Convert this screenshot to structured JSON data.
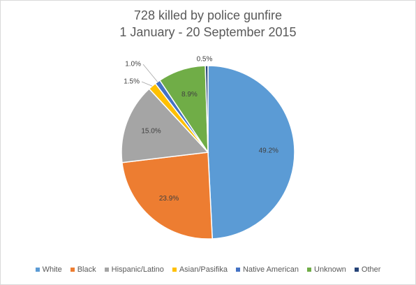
{
  "chart_data": {
    "type": "pie",
    "title": [
      "728 killed by police gunfire",
      "1 January - 20 September 2015"
    ],
    "categories": [
      "White",
      "Black",
      "Hispanic/Latino",
      "Asian/Pasifika",
      "Native American",
      "Unknown",
      "Other"
    ],
    "values": [
      49.2,
      23.9,
      15.0,
      1.5,
      1.0,
      8.9,
      0.5
    ],
    "data_labels": [
      "49.2%",
      "23.9%",
      "15.0%",
      "1.5%",
      "1.0%",
      "8.9%",
      "0.5%"
    ],
    "colors": [
      "#5b9bd5",
      "#ed7d31",
      "#a5a5a5",
      "#ffc000",
      "#4472c4",
      "#70ad47",
      "#264478"
    ],
    "legend_position": "bottom"
  }
}
